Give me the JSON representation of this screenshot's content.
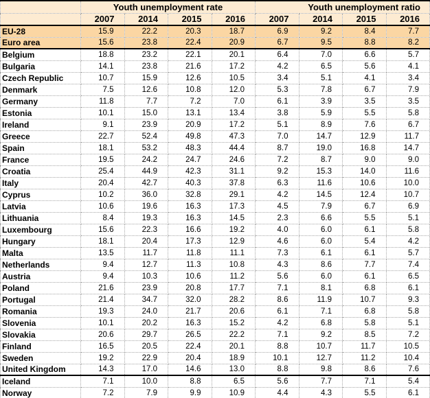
{
  "chart_data": {
    "type": "table",
    "column_groups": [
      "Youth unemployment rate",
      "Youth unemployment ratio"
    ],
    "years": [
      "2007",
      "2014",
      "2015",
      "2016"
    ],
    "year_headers": [
      "2007",
      "2014",
      "2015",
      "2016",
      "2007",
      "2014",
      "2015",
      "2016"
    ],
    "colors": {
      "header_bg": "#FDEBD2",
      "highlight_bg": "#FBD6A3",
      "grid_dotted": "#A6A6A6",
      "border_strong": "#000000"
    },
    "rows": [
      {
        "label": "EU-28",
        "values": [
          "15.9",
          "22.2",
          "20.3",
          "18.7",
          "6.9",
          "9.2",
          "8.4",
          "7.7"
        ],
        "highlight": true,
        "thick_border_below": false
      },
      {
        "label": "Euro area",
        "values": [
          "15.6",
          "23.8",
          "22.4",
          "20.9",
          "6.7",
          "9.5",
          "8.8",
          "8.2"
        ],
        "highlight": true,
        "thick_border_below": true
      },
      {
        "label": "Belgium",
        "values": [
          "18.8",
          "23.2",
          "22.1",
          "20.1",
          "6.4",
          "7.0",
          "6.6",
          "5.7"
        ],
        "highlight": false,
        "thick_border_below": false
      },
      {
        "label": "Bulgaria",
        "values": [
          "14.1",
          "23.8",
          "21.6",
          "17.2",
          "4.2",
          "6.5",
          "5.6",
          "4.1"
        ],
        "highlight": false,
        "thick_border_below": false
      },
      {
        "label": "Czech Republic",
        "values": [
          "10.7",
          "15.9",
          "12.6",
          "10.5",
          "3.4",
          "5.1",
          "4.1",
          "3.4"
        ],
        "highlight": false,
        "thick_border_below": false
      },
      {
        "label": "Denmark",
        "values": [
          "7.5",
          "12.6",
          "10.8",
          "12.0",
          "5.3",
          "7.8",
          "6.7",
          "7.9"
        ],
        "highlight": false,
        "thick_border_below": false
      },
      {
        "label": "Germany",
        "values": [
          "11.8",
          "7.7",
          "7.2",
          "7.0",
          "6.1",
          "3.9",
          "3.5",
          "3.5"
        ],
        "highlight": false,
        "thick_border_below": false
      },
      {
        "label": "Estonia",
        "values": [
          "10.1",
          "15.0",
          "13.1",
          "13.4",
          "3.8",
          "5.9",
          "5.5",
          "5.8"
        ],
        "highlight": false,
        "thick_border_below": false
      },
      {
        "label": "Ireland",
        "values": [
          "9.1",
          "23.9",
          "20.9",
          "17.2",
          "5.1",
          "8.9",
          "7.6",
          "6.7"
        ],
        "highlight": false,
        "thick_border_below": false
      },
      {
        "label": "Greece",
        "values": [
          "22.7",
          "52.4",
          "49.8",
          "47.3",
          "7.0",
          "14.7",
          "12.9",
          "11.7"
        ],
        "highlight": false,
        "thick_border_below": false
      },
      {
        "label": "Spain",
        "values": [
          "18.1",
          "53.2",
          "48.3",
          "44.4",
          "8.7",
          "19.0",
          "16.8",
          "14.7"
        ],
        "highlight": false,
        "thick_border_below": false
      },
      {
        "label": "France",
        "values": [
          "19.5",
          "24.2",
          "24.7",
          "24.6",
          "7.2",
          "8.7",
          "9.0",
          "9.0"
        ],
        "highlight": false,
        "thick_border_below": false
      },
      {
        "label": "Croatia",
        "values": [
          "25.4",
          "44.9",
          "42.3",
          "31.1",
          "9.2",
          "15.3",
          "14.0",
          "11.6"
        ],
        "highlight": false,
        "thick_border_below": false
      },
      {
        "label": "Italy",
        "values": [
          "20.4",
          "42.7",
          "40.3",
          "37.8",
          "6.3",
          "11.6",
          "10.6",
          "10.0"
        ],
        "highlight": false,
        "thick_border_below": false
      },
      {
        "label": "Cyprus",
        "values": [
          "10.2",
          "36.0",
          "32.8",
          "29.1",
          "4.2",
          "14.5",
          "12.4",
          "10.7"
        ],
        "highlight": false,
        "thick_border_below": false
      },
      {
        "label": "Latvia",
        "values": [
          "10.6",
          "19.6",
          "16.3",
          "17.3",
          "4.5",
          "7.9",
          "6.7",
          "6.9"
        ],
        "highlight": false,
        "thick_border_below": false
      },
      {
        "label": "Lithuania",
        "values": [
          "8.4",
          "19.3",
          "16.3",
          "14.5",
          "2.3",
          "6.6",
          "5.5",
          "5.1"
        ],
        "highlight": false,
        "thick_border_below": false
      },
      {
        "label": "Luxembourg",
        "values": [
          "15.6",
          "22.3",
          "16.6",
          "19.2",
          "4.0",
          "6.0",
          "6.1",
          "5.8"
        ],
        "highlight": false,
        "thick_border_below": false
      },
      {
        "label": "Hungary",
        "values": [
          "18.1",
          "20.4",
          "17.3",
          "12.9",
          "4.6",
          "6.0",
          "5.4",
          "4.2"
        ],
        "highlight": false,
        "thick_border_below": false
      },
      {
        "label": "Malta",
        "values": [
          "13.5",
          "11.7",
          "11.8",
          "11.1",
          "7.3",
          "6.1",
          "6.1",
          "5.7"
        ],
        "highlight": false,
        "thick_border_below": false
      },
      {
        "label": "Netherlands",
        "values": [
          "9.4",
          "12.7",
          "11.3",
          "10.8",
          "4.3",
          "8.6",
          "7.7",
          "7.4"
        ],
        "highlight": false,
        "thick_border_below": false
      },
      {
        "label": "Austria",
        "values": [
          "9.4",
          "10.3",
          "10.6",
          "11.2",
          "5.6",
          "6.0",
          "6.1",
          "6.5"
        ],
        "highlight": false,
        "thick_border_below": false
      },
      {
        "label": "Poland",
        "values": [
          "21.6",
          "23.9",
          "20.8",
          "17.7",
          "7.1",
          "8.1",
          "6.8",
          "6.1"
        ],
        "highlight": false,
        "thick_border_below": false
      },
      {
        "label": "Portugal",
        "values": [
          "21.4",
          "34.7",
          "32.0",
          "28.2",
          "8.6",
          "11.9",
          "10.7",
          "9.3"
        ],
        "highlight": false,
        "thick_border_below": false
      },
      {
        "label": "Romania",
        "values": [
          "19.3",
          "24.0",
          "21.7",
          "20.6",
          "6.1",
          "7.1",
          "6.8",
          "5.8"
        ],
        "highlight": false,
        "thick_border_below": false
      },
      {
        "label": "Slovenia",
        "values": [
          "10.1",
          "20.2",
          "16.3",
          "15.2",
          "4.2",
          "6.8",
          "5.8",
          "5.1"
        ],
        "highlight": false,
        "thick_border_below": false
      },
      {
        "label": "Slovakia",
        "values": [
          "20.6",
          "29.7",
          "26.5",
          "22.2",
          "7.1",
          "9.2",
          "8.5",
          "7.2"
        ],
        "highlight": false,
        "thick_border_below": false
      },
      {
        "label": "Finland",
        "values": [
          "16.5",
          "20.5",
          "22.4",
          "20.1",
          "8.8",
          "10.7",
          "11.7",
          "10.5"
        ],
        "highlight": false,
        "thick_border_below": false
      },
      {
        "label": "Sweden",
        "values": [
          "19.2",
          "22.9",
          "20.4",
          "18.9",
          "10.1",
          "12.7",
          "11.2",
          "10.4"
        ],
        "highlight": false,
        "thick_border_below": false
      },
      {
        "label": "United Kingdom",
        "values": [
          "14.3",
          "17.0",
          "14.6",
          "13.0",
          "8.8",
          "9.8",
          "8.6",
          "7.6"
        ],
        "highlight": false,
        "thick_border_below": true
      },
      {
        "label": "Iceland",
        "values": [
          "7.1",
          "10.0",
          "8.8",
          "6.5",
          "5.6",
          "7.7",
          "7.1",
          "5.4"
        ],
        "highlight": false,
        "thick_border_below": false
      },
      {
        "label": "Norway",
        "values": [
          "7.2",
          "7.9",
          "9.9",
          "10.9",
          "4.4",
          "4.3",
          "5.5",
          "6.1"
        ],
        "highlight": false,
        "thick_border_below": false
      }
    ]
  }
}
